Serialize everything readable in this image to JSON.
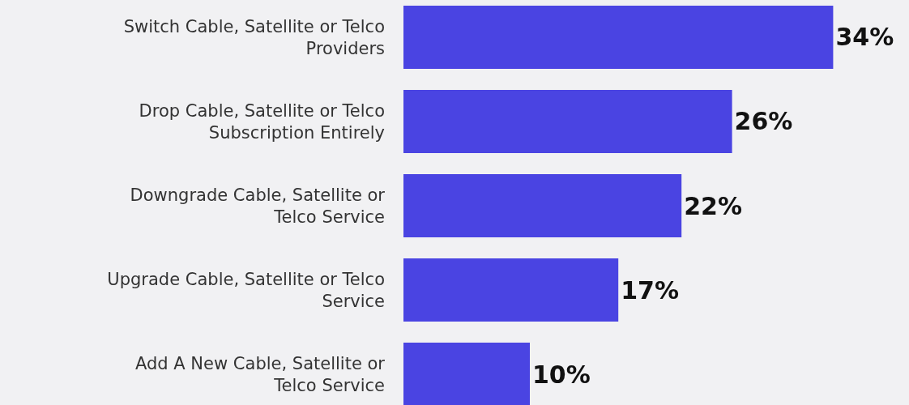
{
  "chart_data": {
    "type": "bar",
    "orientation": "horizontal",
    "categories": [
      "Switch Cable, Satellite or Telco Providers",
      "Drop Cable, Satellite or Telco Subscription Entirely",
      "Downgrade Cable, Satellite or Telco Service",
      "Upgrade Cable, Satellite or Telco Service",
      "Add A New Cable, Satellite or Telco Service"
    ],
    "values": [
      34,
      26,
      22,
      17,
      10
    ],
    "value_labels": [
      "34%",
      "26%",
      "22%",
      "17%",
      "10%"
    ],
    "color": "#4a44e2",
    "xlim": [
      0,
      40
    ],
    "tick_labels": "y",
    "grid": false,
    "legend": false
  }
}
